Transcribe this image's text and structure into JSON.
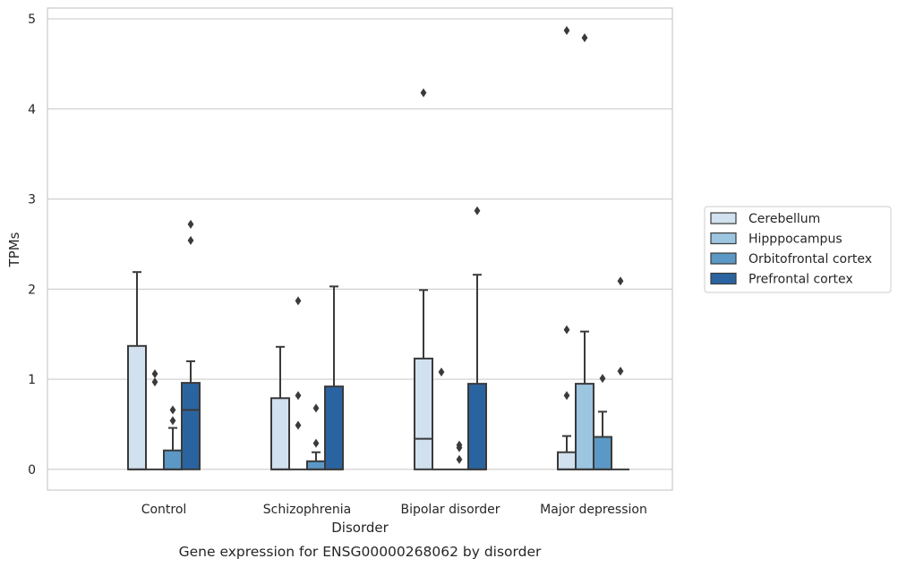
{
  "chart_data": {
    "type": "box",
    "caption": "Gene expression for ENSG00000268062 by disorder",
    "xlabel": "Disorder",
    "ylabel": "TPMs",
    "ylim": [
      -0.23,
      5.12
    ],
    "yticks": [
      0,
      1,
      2,
      3,
      4,
      5
    ],
    "grid": "horizontal",
    "legend_position": "right",
    "categories": [
      "Control",
      "Schizophrenia",
      "Bipolar disorder",
      "Major depression"
    ],
    "series": [
      {
        "name": "Cerebellum",
        "color": "#d1e1f0",
        "boxes": [
          {
            "q1": 0,
            "median": 0,
            "q3": 1.37,
            "whisker_low": 0,
            "whisker_high": 2.19,
            "outliers": []
          },
          {
            "q1": 0,
            "median": 0,
            "q3": 0.79,
            "whisker_low": 0,
            "whisker_high": 1.36,
            "outliers": []
          },
          {
            "q1": 0,
            "median": 0.34,
            "q3": 1.23,
            "whisker_low": 0,
            "whisker_high": 1.99,
            "outliers": [
              4.18
            ]
          },
          {
            "q1": 0,
            "median": 0,
            "q3": 0.19,
            "whisker_low": 0,
            "whisker_high": 0.37,
            "outliers": [
              0.82,
              1.55,
              4.87
            ]
          }
        ]
      },
      {
        "name": "Hipppocampus",
        "color": "#9cc5e0",
        "boxes": [
          {
            "q1": 0,
            "median": 0,
            "q3": 0,
            "whisker_low": 0,
            "whisker_high": 0,
            "outliers": [
              0.97,
              1.06
            ]
          },
          {
            "q1": 0,
            "median": 0,
            "q3": 0,
            "whisker_low": 0,
            "whisker_high": 0,
            "outliers": [
              0.49,
              0.82,
              1.87
            ]
          },
          {
            "q1": 0,
            "median": 0,
            "q3": 0,
            "whisker_low": 0,
            "whisker_high": 0,
            "outliers": [
              1.08
            ]
          },
          {
            "q1": 0,
            "median": 0,
            "q3": 0.95,
            "whisker_low": 0,
            "whisker_high": 1.53,
            "outliers": [
              4.79
            ]
          }
        ]
      },
      {
        "name": "Orbitofrontal cortex",
        "color": "#5b98c5",
        "boxes": [
          {
            "q1": 0,
            "median": 0,
            "q3": 0.21,
            "whisker_low": 0,
            "whisker_high": 0.46,
            "outliers": [
              0.54,
              0.66
            ]
          },
          {
            "q1": 0,
            "median": 0,
            "q3": 0.09,
            "whisker_low": 0,
            "whisker_high": 0.19,
            "outliers": [
              0.29,
              0.68
            ]
          },
          {
            "q1": 0,
            "median": 0,
            "q3": 0,
            "whisker_low": 0,
            "whisker_high": 0,
            "outliers": [
              0.11,
              0.24,
              0.27
            ]
          },
          {
            "q1": 0,
            "median": 0,
            "q3": 0.36,
            "whisker_low": 0,
            "whisker_high": 0.64,
            "outliers": [
              1.01
            ]
          }
        ]
      },
      {
        "name": "Prefrontal cortex",
        "color": "#2a64a0",
        "boxes": [
          {
            "q1": 0,
            "median": 0.66,
            "q3": 0.96,
            "whisker_low": 0,
            "whisker_high": 1.2,
            "outliers": [
              2.54,
              2.72
            ]
          },
          {
            "q1": 0,
            "median": 0,
            "q3": 0.92,
            "whisker_low": 0,
            "whisker_high": 2.03,
            "outliers": []
          },
          {
            "q1": 0,
            "median": 0,
            "q3": 0.95,
            "whisker_low": 0,
            "whisker_high": 2.16,
            "outliers": [
              2.87
            ]
          },
          {
            "q1": 0,
            "median": 0,
            "q3": 0,
            "whisker_low": 0,
            "whisker_high": 0,
            "outliers": [
              1.09,
              2.09
            ]
          }
        ]
      }
    ]
  }
}
